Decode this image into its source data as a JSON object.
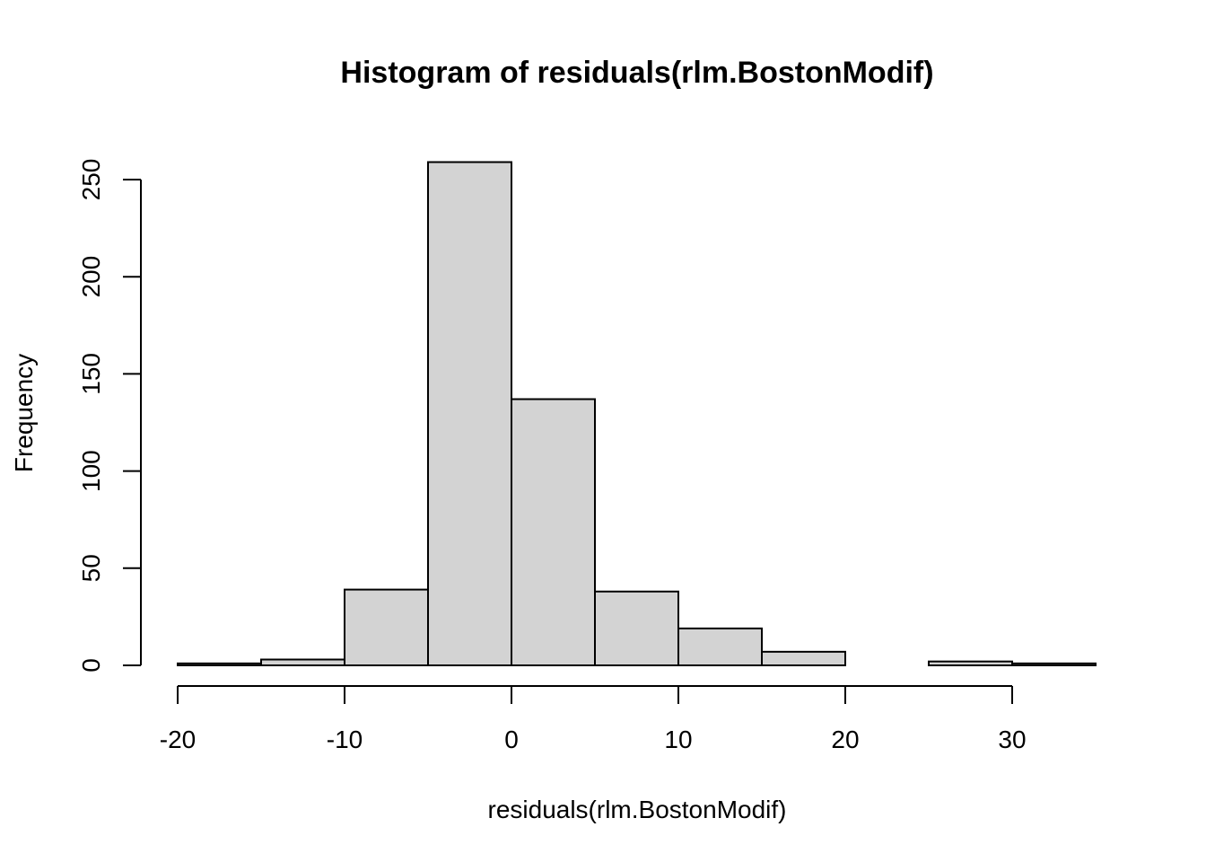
{
  "chart_data": {
    "type": "bar",
    "title": "Histogram of residuals(rlm.BostonModif)",
    "xlabel": "residuals(rlm.BostonModif)",
    "ylabel": "Frequency",
    "bin_edges": [
      -20,
      -15,
      -10,
      -5,
      0,
      5,
      10,
      15,
      20,
      25,
      30,
      35
    ],
    "values": [
      1,
      3,
      39,
      259,
      137,
      38,
      19,
      7,
      0,
      2,
      1
    ],
    "x_ticks": [
      -20,
      -10,
      0,
      10,
      20,
      30
    ],
    "y_ticks": [
      0,
      50,
      100,
      150,
      200,
      250
    ],
    "xlim": [
      -20,
      35
    ],
    "ylim": [
      0,
      259
    ],
    "bar_color": "#d3d3d3",
    "grid": false
  }
}
